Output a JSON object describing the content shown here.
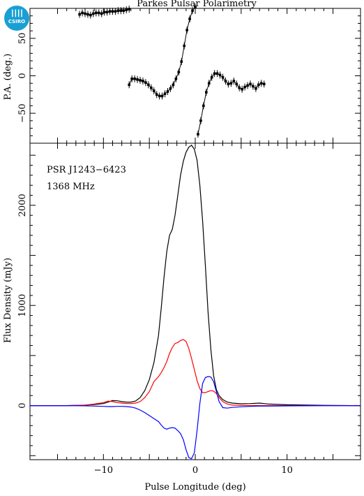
{
  "brand": {
    "logo_text": "CSIRO",
    "color": "#1a9fd4"
  },
  "chart_data": [
    {
      "type": "scatter",
      "panel": "position-angle",
      "title": "Parkes Pulsar Polarimetry",
      "xlabel": "",
      "ylabel": "P.A. (deg.)",
      "xlim": [
        -18,
        18
      ],
      "ylim": [
        -90,
        90
      ],
      "yticks": [
        -50,
        0,
        50
      ],
      "xticks": [
        -10,
        0,
        10
      ],
      "marker_color": "#000000",
      "segments": [
        {
          "x": [
            -12.6,
            -12.3,
            -12.0,
            -11.7,
            -11.4,
            -11.1,
            -10.8,
            -10.5,
            -10.2,
            -9.9,
            -9.6,
            -9.3,
            -9.0,
            -8.7,
            -8.4,
            -8.1,
            -7.8,
            -7.5,
            -7.2
          ],
          "y": [
            82,
            84,
            83,
            82,
            81,
            83,
            84,
            84,
            83,
            85,
            85,
            86,
            86,
            86,
            87,
            87,
            87,
            88,
            89
          ]
        },
        {
          "x": [
            -7.2,
            -6.9,
            -6.6,
            -6.3,
            -6.0,
            -5.7,
            -5.4,
            -5.1,
            -4.8,
            -4.5,
            -4.2,
            -3.9,
            -3.6,
            -3.3,
            -3.0,
            -2.7,
            -2.4,
            -2.1,
            -1.8,
            -1.5,
            -1.2,
            -0.9,
            -0.6,
            -0.3,
            0.0
          ],
          "y": [
            -12,
            -4,
            -4,
            -5,
            -6,
            -7,
            -9,
            -12,
            -16,
            -20,
            -25,
            -27,
            -27,
            -24,
            -21,
            -17,
            -12,
            -4,
            5,
            19,
            40,
            61,
            76,
            87,
            92
          ]
        },
        {
          "x": [
            0.3,
            0.6,
            0.9,
            1.2,
            1.5,
            1.8,
            2.1,
            2.4,
            2.7,
            3.0,
            3.3,
            3.6,
            3.9,
            4.2,
            4.5,
            4.8,
            5.1,
            5.4,
            5.7,
            6.0,
            6.3,
            6.6,
            6.9,
            7.2,
            7.5
          ],
          "y": [
            -78,
            -60,
            -40,
            -22,
            -10,
            -2,
            3,
            3,
            1,
            -2,
            -7,
            -11,
            -10,
            -7,
            -11,
            -16,
            -18,
            -15,
            -13,
            -11,
            -14,
            -17,
            -12,
            -10,
            -11
          ]
        }
      ]
    },
    {
      "type": "line",
      "panel": "flux-density",
      "xlabel": "Pulse Longitude (deg)",
      "ylabel": "Flux Density (mJy)",
      "xlim": [
        -18,
        18
      ],
      "ylim": [
        -540,
        2620
      ],
      "yticks": [
        0,
        1000,
        2000
      ],
      "xticks": [
        -10,
        0,
        10
      ],
      "annotations": [
        "PSR J1243−6423",
        "1368 MHz"
      ],
      "x": [
        -18,
        -14,
        -12,
        -11,
        -10,
        -9.5,
        -9,
        -8.5,
        -8,
        -7.5,
        -7,
        -6.5,
        -6,
        -5.5,
        -5,
        -4.5,
        -4,
        -3.7,
        -3.4,
        -3.1,
        -2.8,
        -2.5,
        -2.2,
        -1.9,
        -1.6,
        -1.3,
        -1,
        -0.7,
        -0.4,
        -0.1,
        0.2,
        0.5,
        0.8,
        1.1,
        1.4,
        1.7,
        2,
        2.3,
        2.6,
        3,
        3.5,
        4,
        5,
        6,
        7,
        8,
        10,
        14,
        18
      ],
      "series": [
        {
          "color": "#000000",
          "values": [
            0,
            0,
            4,
            10,
            20,
            35,
            50,
            48,
            40,
            35,
            35,
            45,
            80,
            150,
            260,
            430,
            700,
            980,
            1280,
            1540,
            1700,
            1760,
            1900,
            2100,
            2300,
            2440,
            2530,
            2580,
            2600,
            2560,
            2450,
            2200,
            1850,
            1400,
            930,
            560,
            300,
            160,
            100,
            60,
            35,
            25,
            18,
            20,
            25,
            15,
            8,
            3,
            0
          ]
        },
        {
          "color": "#ff0000",
          "values": [
            0,
            0,
            5,
            15,
            30,
            45,
            40,
            30,
            25,
            20,
            20,
            25,
            40,
            80,
            140,
            240,
            290,
            330,
            380,
            440,
            520,
            580,
            620,
            630,
            650,
            660,
            640,
            570,
            470,
            360,
            250,
            170,
            130,
            130,
            140,
            150,
            145,
            120,
            80,
            40,
            15,
            5,
            2,
            0,
            0,
            0,
            0,
            0,
            0
          ]
        },
        {
          "color": "#0000ff",
          "values": [
            0,
            0,
            -2,
            -5,
            -8,
            -10,
            -10,
            -8,
            -8,
            -10,
            -14,
            -25,
            -45,
            -70,
            -100,
            -130,
            -160,
            -195,
            -225,
            -235,
            -225,
            -220,
            -225,
            -250,
            -280,
            -340,
            -440,
            -520,
            -530,
            -470,
            -250,
            20,
            220,
            280,
            290,
            285,
            240,
            140,
            40,
            -20,
            -25,
            -18,
            -12,
            -8,
            -5,
            -5,
            -3,
            0,
            0
          ]
        }
      ]
    }
  ]
}
